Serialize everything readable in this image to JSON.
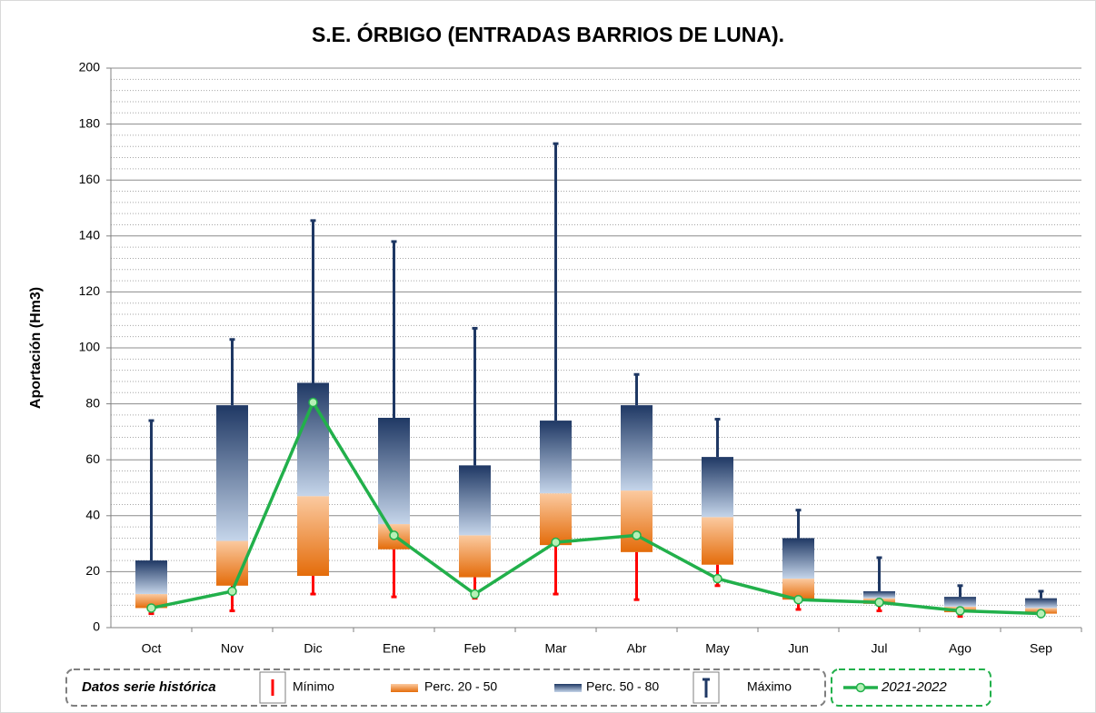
{
  "chart_data": {
    "type": "box",
    "title": "S.E. ÓRBIGO (ENTRADAS BARRIOS DE LUNA).",
    "y_label": "Aportación (Hm3)",
    "categories": [
      "Oct",
      "Nov",
      "Dic",
      "Ene",
      "Feb",
      "Mar",
      "Abr",
      "May",
      "Jun",
      "Jul",
      "Ago",
      "Sep"
    ],
    "legend_title": "Datos serie histórica",
    "box": {
      "min": [
        5,
        6,
        12,
        11,
        10.5,
        12,
        10,
        15,
        6.5,
        6,
        4,
        4.5
      ],
      "p20": [
        7,
        15,
        18.5,
        28,
        18,
        29.5,
        27,
        22.5,
        10,
        8.5,
        5.5,
        5
      ],
      "p50": [
        12,
        31,
        47,
        37,
        33,
        48,
        49,
        39.5,
        17.5,
        10.5,
        7.5,
        7
      ],
      "p80": [
        24,
        79.5,
        87.5,
        75,
        58,
        74,
        79.5,
        61,
        32,
        13,
        11,
        10.5
      ],
      "max": [
        74,
        103,
        145.5,
        138,
        107,
        173,
        90.5,
        74.5,
        42,
        25,
        15,
        13
      ],
      "names": [
        "Mínimo",
        "Perc. 20 - 50",
        "Perc. 50 - 80",
        "Máximo"
      ],
      "colors": [
        "#ff0000",
        "#e46c0a",
        "#1f3864",
        "#1f3864"
      ]
    },
    "series": [
      {
        "name": "2021-2022",
        "color": "#22b04b",
        "values": [
          7,
          13,
          80.5,
          33,
          12,
          30.5,
          33,
          17.5,
          10,
          9,
          6,
          5
        ]
      }
    ],
    "ylim": [
      0,
      200
    ],
    "yticks": [
      0,
      20,
      40,
      60,
      80,
      100,
      120,
      140,
      160,
      180,
      200
    ],
    "grid": true,
    "minor_grid": true
  }
}
